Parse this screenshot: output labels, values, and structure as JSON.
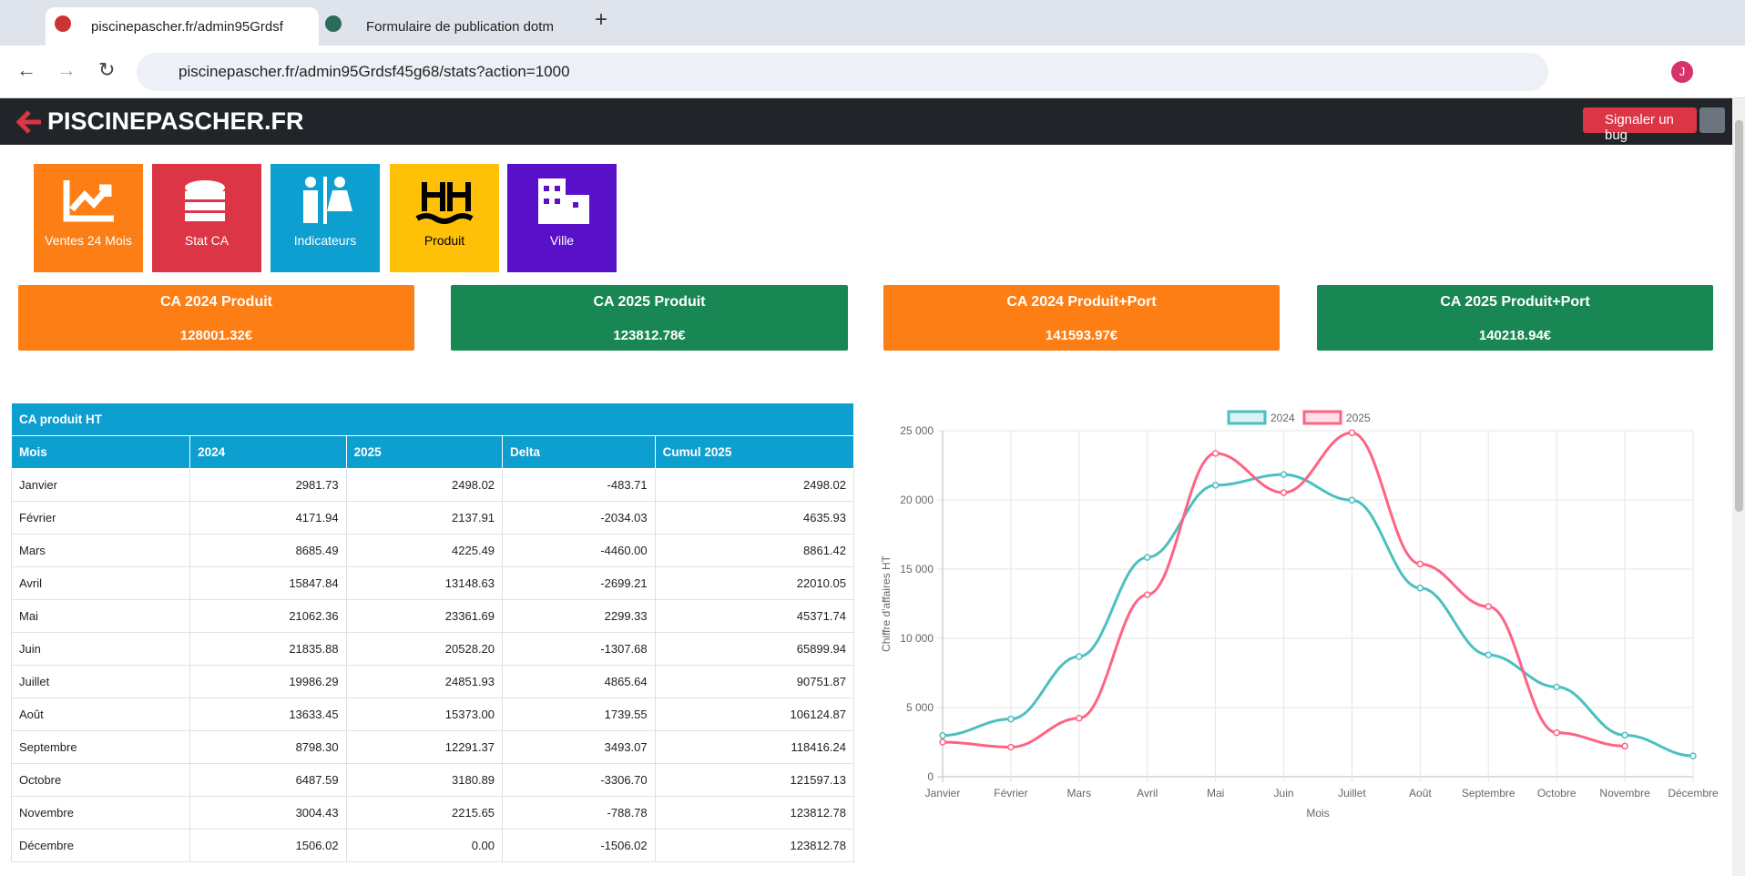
{
  "browser": {
    "tabs": [
      "piscinepascher.fr/admin95Grdsf",
      "Formulaire de publication dotm"
    ],
    "url": "piscinepascher.fr/admin95Grdsf45g68/stats?action=1000",
    "avatar": "J"
  },
  "navbar": {
    "brand": "PISCINEPASCHER.FR",
    "bug_button": "Signaler un bug"
  },
  "tiles": [
    "Ventes 24 Mois",
    "Stat CA",
    "Indicateurs",
    "Produit",
    "Ville"
  ],
  "kpis": [
    {
      "title": "CA 2024 Produit",
      "value": "128001.32€"
    },
    {
      "title": "CA 2025 Produit",
      "value": "123812.78€"
    },
    {
      "title": "CA 2024 Produit+Port",
      "value": "141593.97€"
    },
    {
      "title": "CA 2025 Produit+Port",
      "value": "140218.94€"
    }
  ],
  "table": {
    "title": "CA produit HT",
    "columns": [
      "Mois",
      "2024",
      "2025",
      "Delta",
      "Cumul 2025"
    ],
    "rows": [
      [
        "Janvier",
        "2981.73",
        "2498.02",
        "-483.71",
        "2498.02"
      ],
      [
        "Février",
        "4171.94",
        "2137.91",
        "-2034.03",
        "4635.93"
      ],
      [
        "Mars",
        "8685.49",
        "4225.49",
        "-4460.00",
        "8861.42"
      ],
      [
        "Avril",
        "15847.84",
        "13148.63",
        "-2699.21",
        "22010.05"
      ],
      [
        "Mai",
        "21062.36",
        "23361.69",
        "2299.33",
        "45371.74"
      ],
      [
        "Juin",
        "21835.88",
        "20528.20",
        "-1307.68",
        "65899.94"
      ],
      [
        "Juillet",
        "19986.29",
        "24851.93",
        "4865.64",
        "90751.87"
      ],
      [
        "Août",
        "13633.45",
        "15373.00",
        "1739.55",
        "106124.87"
      ],
      [
        "Septembre",
        "8798.30",
        "12291.37",
        "3493.07",
        "118416.24"
      ],
      [
        "Octobre",
        "6487.59",
        "3180.89",
        "-3306.70",
        "121597.13"
      ],
      [
        "Novembre",
        "3004.43",
        "2215.65",
        "-788.78",
        "123812.78"
      ],
      [
        "Décembre",
        "1506.02",
        "0.00",
        "-1506.02",
        "123812.78"
      ]
    ]
  },
  "chart_data": {
    "type": "line",
    "xlabel": "Mois",
    "ylabel": "Chiffre d'affaires HT",
    "categories": [
      "Janvier",
      "Février",
      "Mars",
      "Avril",
      "Mai",
      "Juin",
      "Juillet",
      "Août",
      "Septembre",
      "Octobre",
      "Novembre",
      "Décembre"
    ],
    "series": [
      {
        "name": "2024",
        "color": "#4bc0c0",
        "values": [
          2981.73,
          4171.94,
          8685.49,
          15847.84,
          21062.36,
          21835.88,
          19986.29,
          13633.45,
          8798.3,
          6487.59,
          3004.43,
          1506.02
        ]
      },
      {
        "name": "2025",
        "color": "#ff6384",
        "values": [
          2498.02,
          2137.91,
          4225.49,
          13148.63,
          23361.69,
          20528.2,
          24851.93,
          15373.0,
          12291.37,
          3180.89,
          2215.65,
          null
        ]
      }
    ],
    "ylim": [
      0,
      25000
    ],
    "yticks": [
      0,
      {
        "value": 5000,
        "label": "5 000"
      },
      {
        "value": 10000,
        "label": "10 000"
      },
      {
        "value": 15000,
        "label": "15 000"
      },
      {
        "value": 20000,
        "label": "20 000"
      },
      {
        "value": 25000,
        "label": "25 000"
      }
    ],
    "grid": true,
    "legend": "top"
  }
}
